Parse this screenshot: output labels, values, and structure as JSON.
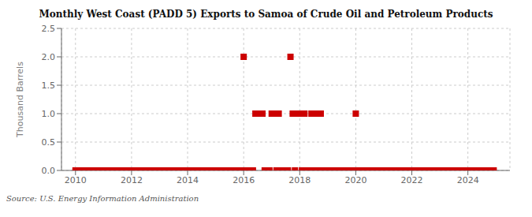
{
  "chart_data": {
    "type": "scatter",
    "title": "Monthly West Coast (PADD 5) Exports to Samoa of Crude Oil and Petroleum Products",
    "ylabel": "Thousand Barrels",
    "annotations": [
      "Source: U.S. Energy Information Administration"
    ],
    "color": "#cc0000",
    "marker": "square",
    "grid": true,
    "xlim": [
      2009.5,
      2025.5
    ],
    "xticks": [
      2010,
      2012,
      2014,
      2016,
      2018,
      2020,
      2022,
      2024
    ],
    "ylim": [
      0.0,
      2.5
    ],
    "yticks": [
      {
        "value": 0.0,
        "label": "0.0"
      },
      0.5,
      {
        "value": 1.0,
        "label": "1.0"
      },
      1.5,
      {
        "value": 2.0,
        "label": "2.0"
      },
      2.5
    ],
    "x": [
      2010.0,
      2010.08,
      2010.17,
      2010.25,
      2010.33,
      2010.42,
      2010.5,
      2010.58,
      2010.67,
      2010.75,
      2010.83,
      2010.92,
      2011.0,
      2011.08,
      2011.17,
      2011.25,
      2011.33,
      2011.42,
      2011.5,
      2011.58,
      2011.67,
      2011.75,
      2011.83,
      2011.92,
      2012.0,
      2012.08,
      2012.17,
      2012.25,
      2012.33,
      2012.42,
      2012.5,
      2012.58,
      2012.67,
      2012.75,
      2012.83,
      2012.92,
      2013.0,
      2013.08,
      2013.17,
      2013.25,
      2013.33,
      2013.42,
      2013.5,
      2013.58,
      2013.67,
      2013.75,
      2013.83,
      2013.92,
      2014.0,
      2014.08,
      2014.17,
      2014.25,
      2014.33,
      2014.42,
      2014.5,
      2014.58,
      2014.67,
      2014.75,
      2014.83,
      2014.92,
      2015.0,
      2015.08,
      2015.17,
      2015.25,
      2015.33,
      2015.42,
      2015.5,
      2015.58,
      2015.67,
      2015.75,
      2015.83,
      2015.92,
      2016.0,
      2016.08,
      2016.17,
      2016.25,
      2016.33,
      2016.42,
      2016.5,
      2016.58,
      2016.67,
      2016.75,
      2016.83,
      2016.92,
      2017.0,
      2017.08,
      2017.17,
      2017.25,
      2017.33,
      2017.42,
      2017.5,
      2017.58,
      2017.67,
      2017.75,
      2017.83,
      2017.92,
      2018.0,
      2018.08,
      2018.17,
      2018.25,
      2018.33,
      2018.42,
      2018.5,
      2018.58,
      2018.67,
      2018.75,
      2018.83,
      2018.92,
      2019.0,
      2019.08,
      2019.17,
      2019.25,
      2019.33,
      2019.42,
      2019.5,
      2019.58,
      2019.67,
      2019.75,
      2019.83,
      2019.92,
      2020.0,
      2020.08,
      2020.17,
      2020.25,
      2020.33,
      2020.42,
      2020.5,
      2020.58,
      2020.67,
      2020.75,
      2020.83,
      2020.92,
      2021.0,
      2021.08,
      2021.17,
      2021.25,
      2021.33,
      2021.42,
      2021.5,
      2021.58,
      2021.67,
      2021.75,
      2021.83,
      2021.92,
      2022.0,
      2022.08,
      2022.17,
      2022.25,
      2022.33,
      2022.42,
      2022.5,
      2022.58,
      2022.67,
      2022.75,
      2022.83,
      2022.92,
      2023.0,
      2023.08,
      2023.17,
      2023.25,
      2023.33,
      2023.42,
      2023.5,
      2023.58,
      2023.67,
      2023.75,
      2023.83,
      2023.92,
      2024.0,
      2024.08,
      2024.17,
      2024.25,
      2024.33,
      2024.42,
      2024.5,
      2024.58,
      2024.67,
      2024.75,
      2024.83,
      2024.92
    ],
    "values": [
      0.0,
      0.0,
      0.0,
      0.0,
      0.0,
      0.0,
      0.0,
      0.0,
      0.0,
      0.0,
      0.0,
      0.0,
      0.0,
      0.0,
      0.0,
      0.0,
      0.0,
      0.0,
      0.0,
      0.0,
      0.0,
      0.0,
      0.0,
      0.0,
      0.0,
      0.0,
      0.0,
      0.0,
      0.0,
      0.0,
      0.0,
      0.0,
      0.0,
      0.0,
      0.0,
      0.0,
      0.0,
      0.0,
      0.0,
      0.0,
      0.0,
      0.0,
      0.0,
      0.0,
      0.0,
      0.0,
      0.0,
      0.0,
      0.0,
      0.0,
      0.0,
      0.0,
      0.0,
      0.0,
      0.0,
      0.0,
      0.0,
      0.0,
      0.0,
      0.0,
      0.0,
      0.0,
      0.0,
      0.0,
      0.0,
      0.0,
      0.0,
      0.0,
      0.0,
      0.0,
      0.0,
      0.0,
      2.0,
      0.0,
      0.0,
      0.0,
      0.0,
      1.0,
      1.0,
      1.0,
      1.0,
      0.0,
      0.0,
      0.0,
      1.0,
      1.0,
      0.0,
      1.0,
      0.0,
      0.0,
      0.0,
      0.0,
      2.0,
      1.0,
      0.0,
      1.0,
      1.0,
      0.0,
      1.0,
      0.0,
      0.0,
      1.0,
      0.0,
      1.0,
      0.0,
      1.0,
      0.0,
      0.0,
      0.0,
      0.0,
      0.0,
      0.0,
      0.0,
      0.0,
      0.0,
      0.0,
      0.0,
      0.0,
      0.0,
      0.0,
      1.0,
      0.0,
      0.0,
      0.0,
      0.0,
      0.0,
      0.0,
      0.0,
      0.0,
      0.0,
      0.0,
      0.0,
      0.0,
      0.0,
      0.0,
      0.0,
      0.0,
      0.0,
      0.0,
      0.0,
      0.0,
      0.0,
      0.0,
      0.0,
      0.0,
      0.0,
      0.0,
      0.0,
      0.0,
      0.0,
      0.0,
      0.0,
      0.0,
      0.0,
      0.0,
      0.0,
      0.0,
      0.0,
      0.0,
      0.0,
      0.0,
      0.0,
      0.0,
      0.0,
      0.0,
      0.0,
      0.0,
      0.0,
      0.0,
      0.0,
      0.0,
      0.0,
      0.0,
      0.0,
      0.0,
      0.0,
      0.0,
      0.0,
      0.0,
      0.0
    ]
  }
}
